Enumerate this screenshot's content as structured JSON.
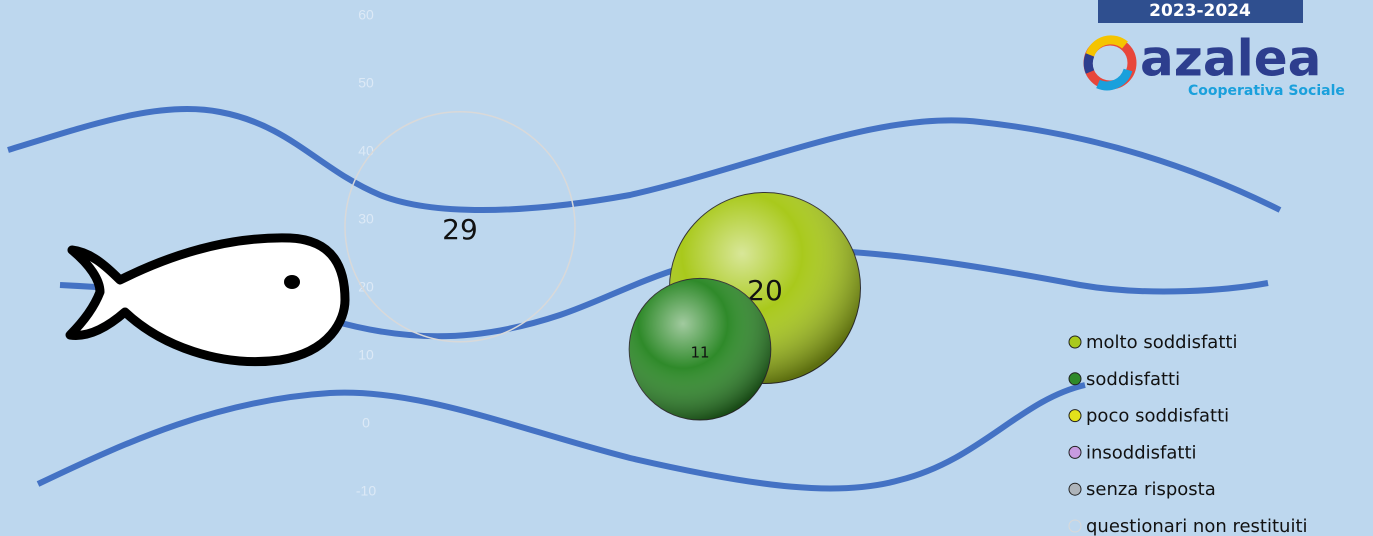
{
  "header": {
    "badge": "2023-2024",
    "logo": "azalea",
    "logo_subtitle": "Cooperativa Sociale"
  },
  "chart_data": {
    "type": "bubble",
    "ylim": [
      -10,
      60
    ],
    "yticks": [
      -10,
      0,
      10,
      20,
      30,
      40,
      50,
      60
    ],
    "xlim": [
      0,
      20
    ],
    "series": [
      {
        "name": "molto soddisfatti",
        "color": "#a9c91c",
        "x": [
          8
        ],
        "values": [
          20
        ],
        "sizes": [
          20
        ]
      },
      {
        "name": "soddisfatti",
        "color": "#2f8a2a",
        "x": [
          6.7
        ],
        "values": [
          11
        ],
        "sizes": [
          11
        ]
      },
      {
        "name": "poco soddisfatti",
        "color": "#e3e21b",
        "x": [],
        "values": [],
        "sizes": []
      },
      {
        "name": "insoddisfatti",
        "color": "#c79be0",
        "x": [],
        "values": [],
        "sizes": []
      },
      {
        "name": "senza risposta",
        "color": "#aeb4ba",
        "x": [],
        "values": [],
        "sizes": []
      },
      {
        "name": "questionari non restituiti",
        "color": "#d9d9d9",
        "x": [
          1.9
        ],
        "values": [
          29
        ],
        "sizes": [
          29
        ],
        "hollow": true
      }
    ]
  }
}
